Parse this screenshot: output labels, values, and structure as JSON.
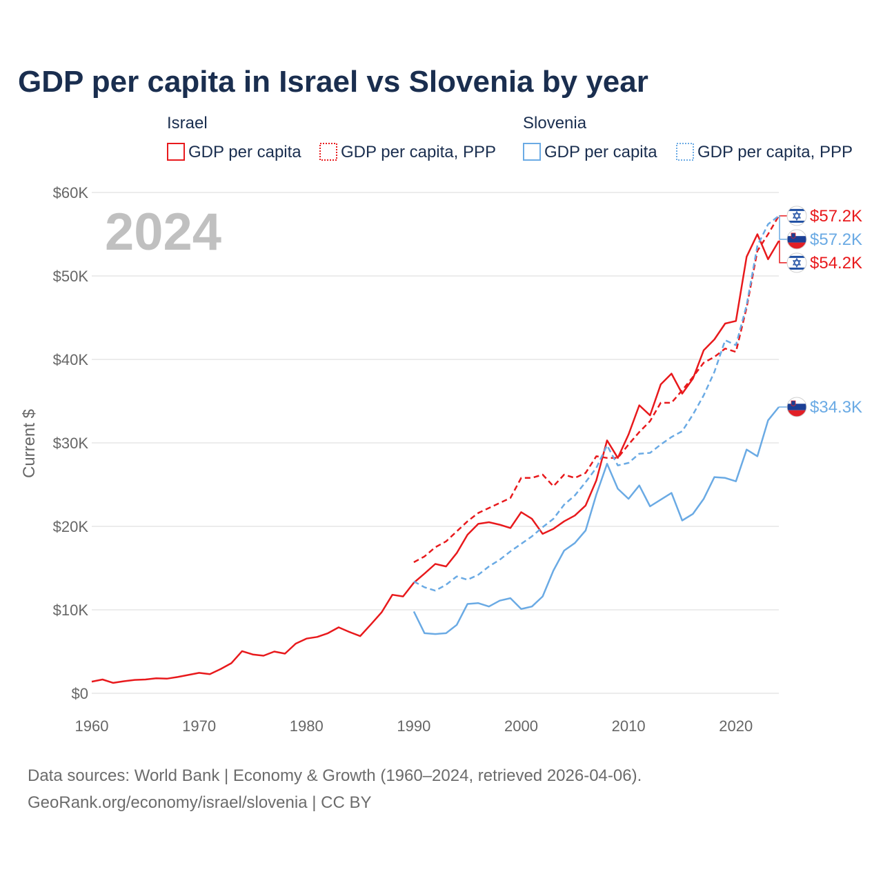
{
  "chart_data": {
    "type": "line",
    "title": "GDP per capita in Israel vs Slovenia by year",
    "year_label": "2024",
    "ylabel": "Current $",
    "xlabel": "",
    "xlim": [
      1960,
      2024
    ],
    "ylim": [
      0,
      60000
    ],
    "x_ticks": [
      {
        "value": 1960,
        "label": "1960"
      },
      {
        "value": 1970,
        "label": "1970"
      },
      {
        "value": 1980,
        "label": "1980"
      },
      {
        "value": 1990,
        "label": "1990"
      },
      {
        "value": 2000,
        "label": "2000"
      },
      {
        "value": 2010,
        "label": "2010"
      },
      {
        "value": 2020,
        "label": "2020"
      }
    ],
    "y_ticks": [
      {
        "value": 0,
        "label": "$0"
      },
      {
        "value": 10000,
        "label": "$10K"
      },
      {
        "value": 20000,
        "label": "$20K"
      },
      {
        "value": 30000,
        "label": "$30K"
      },
      {
        "value": 40000,
        "label": "$40K"
      },
      {
        "value": 50000,
        "label": "$50K"
      },
      {
        "value": 60000,
        "label": "$60K"
      }
    ],
    "legend": [
      {
        "group": "Israel",
        "items": [
          "GDP per capita",
          "GDP per capita, PPP"
        ]
      },
      {
        "group": "Slovenia",
        "items": [
          "GDP per capita",
          "GDP per capita, PPP"
        ]
      }
    ],
    "colors": {
      "israel": "#e8191c",
      "slovenia": "#6aaae4"
    },
    "series": [
      {
        "name": "Israel GDP per capita",
        "country": "israel",
        "dashed": false,
        "end_label": "$54.2K",
        "start_year": 1960,
        "values": [
          1400,
          1650,
          1250,
          1450,
          1600,
          1650,
          1800,
          1750,
          1950,
          2200,
          2450,
          2300,
          2900,
          3600,
          5050,
          4650,
          4500,
          5000,
          4750,
          5950,
          6550,
          6750,
          7200,
          7900,
          7350,
          6850,
          8250,
          9700,
          11800,
          11600,
          13250,
          14350,
          15500,
          15200,
          16800,
          19000,
          20300,
          20500,
          20200,
          19800,
          21700,
          20900,
          19100,
          19700,
          20600,
          21300,
          22500,
          25500,
          30300,
          28200,
          31000,
          34500,
          33300,
          37000,
          38300,
          35900,
          37700,
          41100,
          42400,
          44300,
          44600,
          52300,
          55000,
          52000,
          54200
        ]
      },
      {
        "name": "Israel GDP per capita, PPP",
        "country": "israel",
        "dashed": true,
        "end_label": "$57.2K",
        "start_year": 1990,
        "values": [
          15700,
          16400,
          17500,
          18200,
          19400,
          20600,
          21600,
          22200,
          22800,
          23400,
          25800,
          25800,
          26200,
          24800,
          26200,
          25800,
          26400,
          28400,
          28200,
          28200,
          29800,
          31300,
          32600,
          34800,
          34800,
          36300,
          37900,
          39600,
          40300,
          41300,
          40900,
          46200,
          53000,
          55000,
          57200
        ]
      },
      {
        "name": "Slovenia GDP per capita",
        "country": "slovenia",
        "dashed": false,
        "end_label": "$34.3K",
        "start_year": 1990,
        "values": [
          9800,
          7200,
          7100,
          7200,
          8200,
          10700,
          10800,
          10400,
          11100,
          11400,
          10100,
          10400,
          11600,
          14700,
          17100,
          18000,
          19500,
          23800,
          27500,
          24500,
          23300,
          24900,
          22400,
          23200,
          24000,
          20700,
          21500,
          23300,
          25900,
          25800,
          25400,
          29200,
          28400,
          32700,
          34300
        ]
      },
      {
        "name": "Slovenia GDP per capita, PPP",
        "country": "slovenia",
        "dashed": true,
        "end_label": "$57.2K",
        "start_year": 1990,
        "values": [
          13400,
          12700,
          12300,
          13000,
          14000,
          13600,
          14200,
          15200,
          16000,
          17000,
          17900,
          18800,
          19900,
          20900,
          22600,
          23700,
          25300,
          27000,
          29700,
          27300,
          27600,
          28700,
          28800,
          29800,
          30700,
          31400,
          33400,
          35700,
          38500,
          42300,
          41700,
          46500,
          53600,
          56200,
          57200
        ]
      }
    ]
  },
  "source": {
    "line1": "Data sources: World Bank | Economy & Growth (1960–2024, retrieved 2026-04-06).",
    "line2": "GeoRank.org/economy/israel/slovenia | CC BY"
  }
}
